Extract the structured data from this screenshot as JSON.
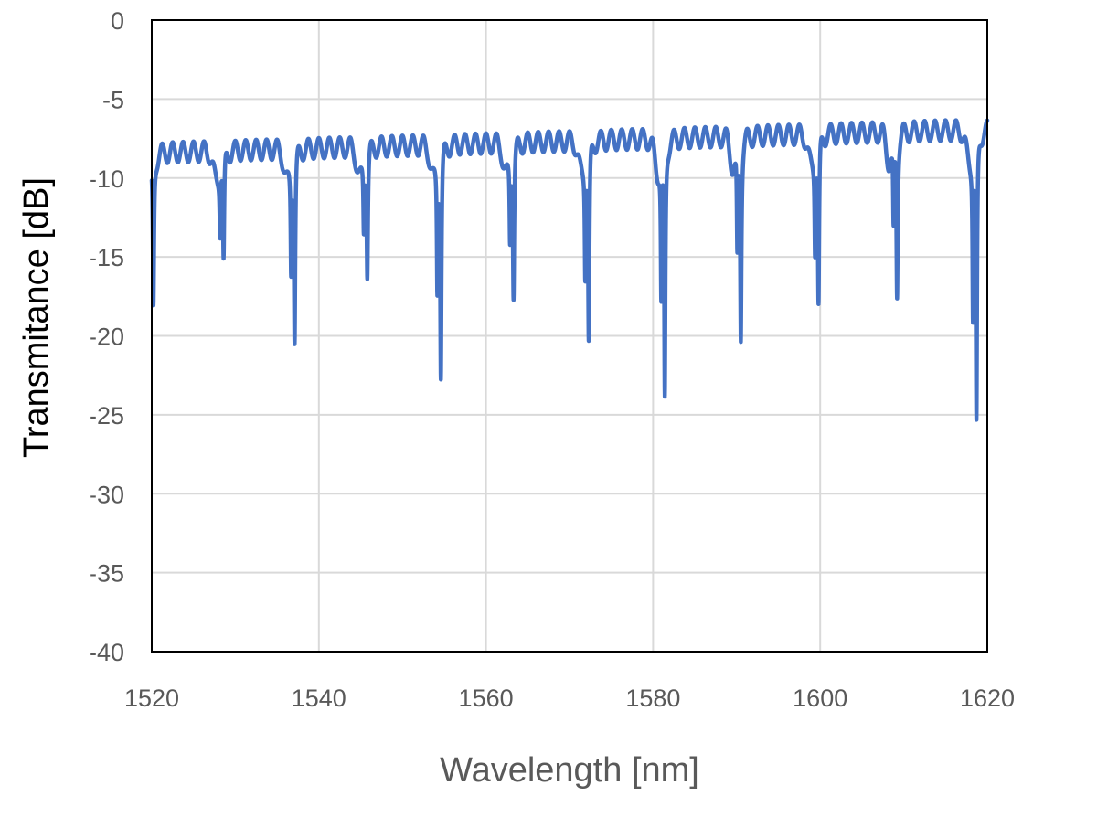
{
  "chart_data": {
    "type": "line",
    "title": "",
    "xlabel": "Wavelength [nm]",
    "ylabel": "Transmitance [dB]",
    "xlim": [
      1520,
      1620
    ],
    "ylim": [
      -40,
      0
    ],
    "x_ticks": [
      1520,
      1540,
      1560,
      1580,
      1600,
      1620
    ],
    "y_ticks": [
      0,
      -5,
      -10,
      -15,
      -20,
      -25,
      -30,
      -35,
      -40
    ],
    "x_tick_labels": [
      "1520",
      "1540",
      "1560",
      "1580",
      "1600",
      "1620"
    ],
    "y_tick_labels": [
      "0",
      "-5",
      "-10",
      "-15",
      "-20",
      "-25",
      "-30",
      "-35",
      "-40"
    ],
    "grid": true,
    "legend": "none",
    "line_color": "#4472C4",
    "grid_color": "#d9d9d9",
    "series": [
      {
        "baseline_start_db": -8.4,
        "baseline_end_db": -6.9,
        "ripple_period_nm": 1.25,
        "ripple_amplitude_db": 0.65,
        "dips": [
          {
            "center_nm": 1520.2,
            "min_db": -18.2
          },
          {
            "center_nm": 1528.6,
            "min_db": -15.4
          },
          {
            "center_nm": 1537.1,
            "min_db": -20.0
          },
          {
            "center_nm": 1545.8,
            "min_db": -15.8
          },
          {
            "center_nm": 1554.6,
            "min_db": -22.2
          },
          {
            "center_nm": 1563.3,
            "min_db": -17.1
          },
          {
            "center_nm": 1572.3,
            "min_db": -20.4
          },
          {
            "center_nm": 1581.4,
            "min_db": -24.0
          },
          {
            "center_nm": 1590.5,
            "min_db": -19.6
          },
          {
            "center_nm": 1599.8,
            "min_db": -18.1
          },
          {
            "center_nm": 1609.2,
            "min_db": -17.0
          },
          {
            "center_nm": 1618.7,
            "min_db": -25.6
          }
        ]
      }
    ]
  }
}
